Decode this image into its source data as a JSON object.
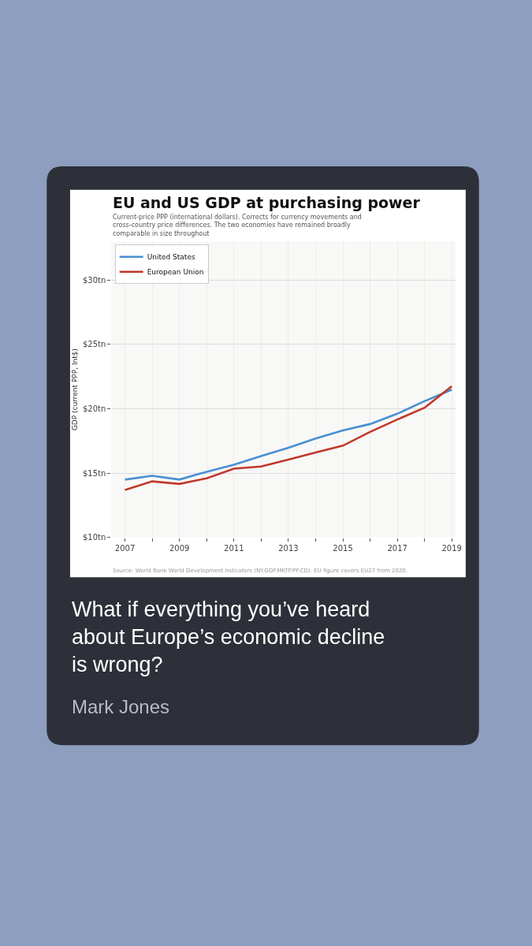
{
  "chart_data": {
    "type": "line",
    "title": "EU and US GDP at purchasing power",
    "subtitle": "Current-price PPP (international dollars). Corrects for currency movements and cross-country price differences. The two economies have remained broadly comparable in size throughout",
    "ylabel": "GDP (current PPP, Int$)",
    "x": [
      2007,
      2008,
      2009,
      2010,
      2011,
      2012,
      2013,
      2014,
      2015,
      2016,
      2017,
      2018,
      2019
    ],
    "series": [
      {
        "name": "United States",
        "color": "#4a8fd4",
        "values": [
          14.49,
          14.79,
          14.49,
          15.1,
          15.65,
          16.32,
          16.97,
          17.68,
          18.31,
          18.81,
          19.61,
          20.59,
          21.49
        ]
      },
      {
        "name": "European Union",
        "color": "#c0392b",
        "values": [
          13.68,
          14.35,
          14.15,
          14.59,
          15.34,
          15.51,
          16.05,
          16.59,
          17.13,
          18.2,
          19.16,
          20.08,
          21.74
        ]
      }
    ],
    "xlim": [
      2006.5,
      2019.14
    ],
    "xticks": [
      2007,
      {
        "value": 2008,
        "label": null
      },
      2009,
      {
        "value": 2010,
        "label": null
      },
      2011,
      {
        "value": 2012,
        "label": null
      },
      2013,
      {
        "value": 2014,
        "label": null
      },
      2015,
      {
        "value": 2016,
        "label": null
      },
      2017,
      {
        "value": 2018,
        "label": null
      },
      2019
    ],
    "ylim": [
      10,
      33
    ],
    "yticks": [
      {
        "value": 10,
        "label": "$10tn"
      },
      {
        "value": 15,
        "label": "$15tn"
      },
      {
        "value": 20,
        "label": "$20tn"
      },
      {
        "value": 25,
        "label": "$25tn"
      },
      {
        "value": 30,
        "label": "$30tn"
      }
    ],
    "grid": true,
    "legend": "top left",
    "marker": "none",
    "line_style": "solid",
    "annotations": [
      "Source: World Bank World Development Indicators (NY.GDP.MKTP.PP.CD). EU figure covers EU27 from 2020.",
      "What if everything you’ve heard about Europe’s economic decline is wrong?",
      "Mark Jones"
    ]
  }
}
